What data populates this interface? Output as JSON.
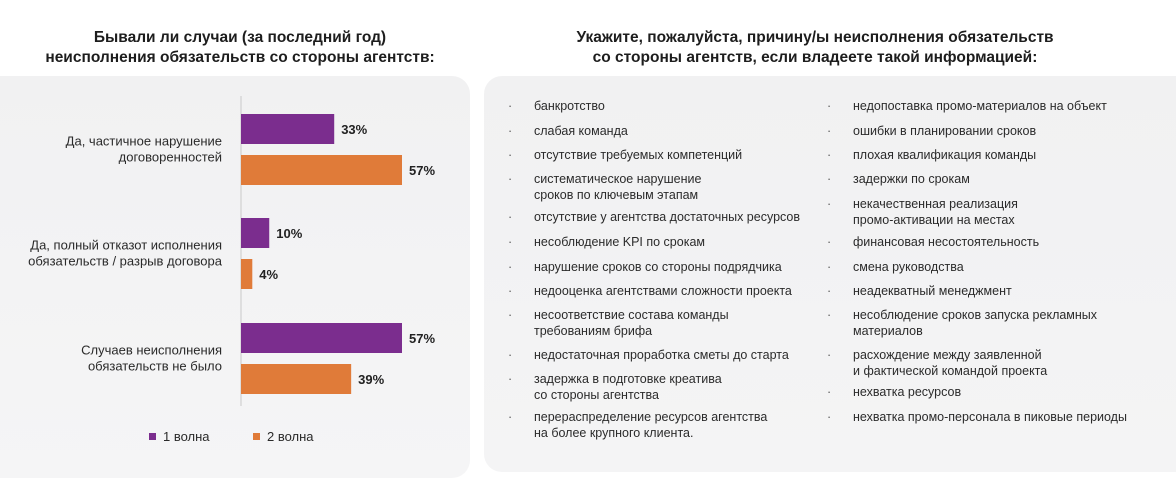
{
  "left": {
    "title": "Бывали ли случаи (за последний год)\nнеисполнения обязательств со стороны агентств:"
  },
  "right": {
    "title": "Укажите, пожалуйста, причину/ы неисполнения обязательств\nсо стороны агентств, если владеете такой информацией:",
    "bullet": "·",
    "col1": [
      "банкротство",
      "слабая команда",
      "отсутствие требуемых компетенций",
      "систематическое нарушение\nсроков по ключевым этапам",
      "отсутствие у агентства достаточных ресурсов",
      "несоблюдение KPI по срокам",
      "нарушение сроков со стороны подрядчика",
      "недооценка агентствами сложности проекта",
      "несоответствие состава команды\nтребованиям брифа",
      "недостаточная проработка сметы до старта",
      "задержка в подготовке креатива\nсо стороны агентства",
      "перераспределение ресурсов агентства\nна более крупного клиента."
    ],
    "col2": [
      "недопоставка промо-материалов на объект",
      "ошибки в планировании сроков",
      "плохая квалификация команды",
      "задержки по срокам",
      "некачественная реализация\nпромо-активации на местах",
      "финансовая несостоятельность",
      "смена руководства",
      "неадекватный менеджмент",
      "несоблюдение сроков запуска рекламных\nматериалов",
      "расхождение между заявленной\nи фактической командой проекта",
      "нехватка ресурсов",
      "нехватка промо-персонала в пиковые периоды"
    ]
  },
  "chart_data": {
    "type": "bar",
    "orientation": "horizontal",
    "title": "Бывали ли случаи (за последний год) неисполнения обязательств со стороны агентств:",
    "categories": [
      "Да, частичное нарушение\nдоговоренностей",
      "Да, полный отказот исполнения\nобязательств / разрыв договора",
      "Случаев неисполнения\nобязательств не было"
    ],
    "series": [
      {
        "name": "1 волна",
        "values": [
          33,
          10,
          57
        ],
        "labels": [
          "33%",
          "10%",
          "57%"
        ],
        "color": "#7b2d8e"
      },
      {
        "name": "2 волна",
        "values": [
          57,
          4,
          39
        ],
        "labels": [
          "57%",
          "4%",
          "39%"
        ],
        "color": "#e07b39"
      }
    ],
    "xlim": [
      0,
      57
    ],
    "grid": false,
    "legend_position": "bottom"
  }
}
